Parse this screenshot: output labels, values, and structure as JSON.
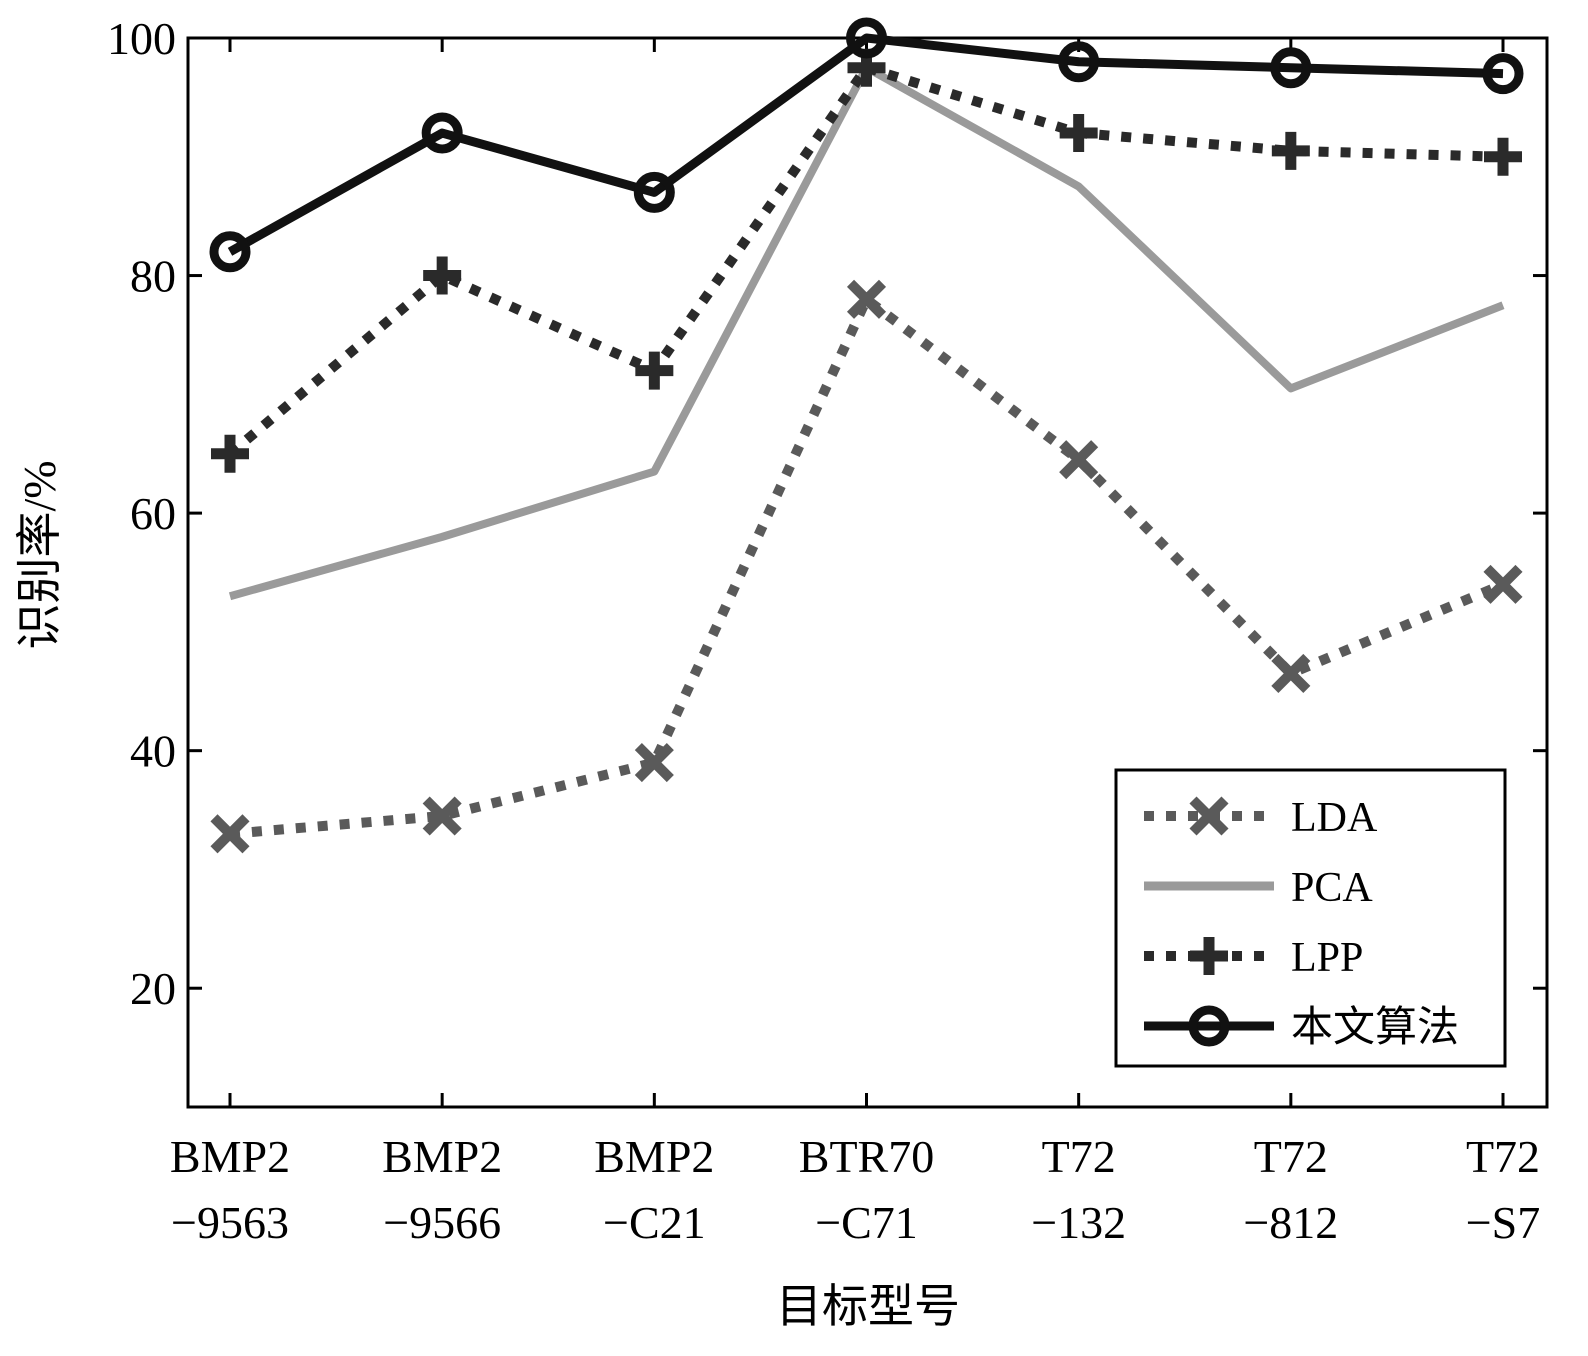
{
  "chart_data": {
    "type": "line",
    "xlabel": "目标型号",
    "ylabel": "识别率/%",
    "ylim": [
      10,
      100
    ],
    "yticks": [
      20,
      40,
      60,
      80,
      100
    ],
    "grid": false,
    "legend_position": "bottom-right",
    "categories": [
      [
        "BMP2",
        "−9563"
      ],
      [
        "BMP2",
        "−9566"
      ],
      [
        "BMP2",
        "−C21"
      ],
      [
        "BTR70",
        "−C71"
      ],
      [
        "T72",
        "−132"
      ],
      [
        "T72",
        "−812"
      ],
      [
        "T72",
        "−S7"
      ]
    ],
    "series": [
      {
        "name": "LDA",
        "color": "#5a5a5a",
        "line": "dotted",
        "marker": "x",
        "values": [
          33,
          34.5,
          39,
          78,
          64.5,
          46.5,
          54
        ]
      },
      {
        "name": "PCA",
        "color": "#9a9a9a",
        "line": "solid",
        "marker": "none",
        "values": [
          53,
          58,
          63.5,
          97.5,
          87.5,
          70.5,
          77.5
        ]
      },
      {
        "name": "LPP",
        "color": "#2a2a2a",
        "line": "dotted",
        "marker": "plus",
        "values": [
          65,
          80,
          72,
          97.5,
          92,
          90.5,
          90
        ]
      },
      {
        "name": "本文算法",
        "color": "#111111",
        "line": "solid",
        "marker": "circle",
        "values": [
          82,
          92,
          87,
          100,
          98,
          97.5,
          97
        ]
      }
    ]
  }
}
